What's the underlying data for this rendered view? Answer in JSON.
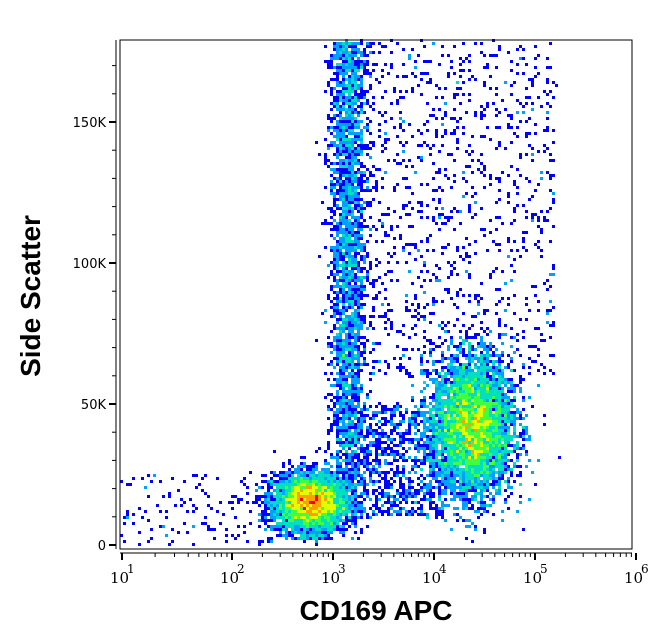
{
  "chart_data": {
    "type": "heatmap",
    "subtype": "flow-cytometry density dot plot",
    "xlabel": "CD169 APC",
    "ylabel": "Side Scatter",
    "x_scale": "log",
    "xlim": [
      10,
      1000000
    ],
    "ylim": [
      0,
      180000
    ],
    "x_ticks": [
      {
        "base": "10",
        "exp": "1",
        "value": 10
      },
      {
        "base": "10",
        "exp": "2",
        "value": 100
      },
      {
        "base": "10",
        "exp": "3",
        "value": 1000
      },
      {
        "base": "10",
        "exp": "4",
        "value": 10000
      },
      {
        "base": "10",
        "exp": "5",
        "value": 100000
      },
      {
        "base": "10",
        "exp": "6",
        "value": 1000000
      }
    ],
    "y_ticks": [
      {
        "label": "0",
        "value": 0
      },
      {
        "label": "50K",
        "value": 50000
      },
      {
        "label": "100K",
        "value": 100000
      },
      {
        "label": "150K",
        "value": 150000
      }
    ],
    "populations": [
      {
        "center_x": 600,
        "center_y": 15000,
        "relative_density": "highest"
      },
      {
        "center_x": 25000,
        "center_y": 42000,
        "relative_density": "high"
      },
      {
        "center_x": 1500,
        "center_y_range": [
          20000,
          180000
        ],
        "relative_density": "medium"
      }
    ],
    "colormap": [
      "#0000ff",
      "#00a0ff",
      "#00e0c0",
      "#40ff40",
      "#e0ff00",
      "#ffa000",
      "#ff0000"
    ],
    "grid": false,
    "legend": "none"
  }
}
